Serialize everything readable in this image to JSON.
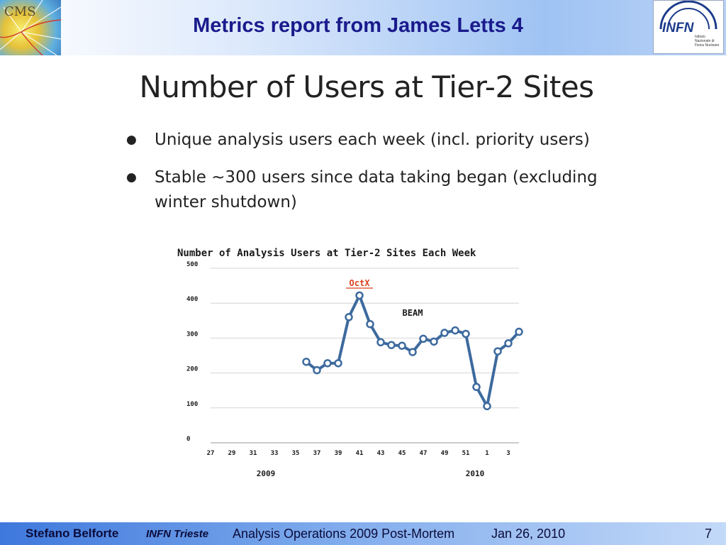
{
  "header": {
    "title": "Metrics report from James Letts 4",
    "left_logo_text": "CMS",
    "right_logo_text": "INFN",
    "right_logo_caption": "Istituto Nazionale di Fisica Nucleare"
  },
  "slide": {
    "title": "Number of Users at Tier-2 Sites",
    "bullets": [
      "Unique analysis users each week (incl. priority users)",
      "Stable ~300 users since data taking began (excluding winter shutdown)"
    ]
  },
  "chart_data": {
    "type": "line",
    "title": "Number of Analysis Users at Tier-2 Sites Each Week",
    "xlabel": "",
    "ylabel": "",
    "ylim": [
      0,
      500
    ],
    "y_ticks": [
      0,
      100,
      200,
      300,
      400,
      500
    ],
    "x_tick_labels": [
      "27",
      "29",
      "31",
      "33",
      "35",
      "37",
      "39",
      "41",
      "43",
      "45",
      "47",
      "49",
      "51",
      "1",
      "3"
    ],
    "year_labels": [
      "2009",
      "2010"
    ],
    "grid": true,
    "series_color": "#3d6a9e",
    "annotations": [
      {
        "text": "OctX",
        "week": "41",
        "color": "#d9421f"
      },
      {
        "text": "BEAM",
        "week": "46",
        "color": "#1a1a1a"
      }
    ],
    "series": [
      {
        "weeks": [
          "36",
          "37",
          "38",
          "39",
          "40",
          "41",
          "42",
          "43",
          "44",
          "45",
          "46",
          "47",
          "48",
          "49",
          "50",
          "51",
          "52",
          "1",
          "2",
          "3",
          "4"
        ],
        "values": [
          232,
          208,
          228,
          228,
          360,
          422,
          340,
          288,
          280,
          278,
          260,
          298,
          290,
          315,
          322,
          312,
          160,
          105,
          262,
          285,
          318
        ]
      }
    ]
  },
  "footer": {
    "author": "Stefano Belforte",
    "affiliation": "INFN Trieste",
    "talk": "Analysis Operations 2009 Post-Mortem",
    "date": "Jan 26, 2010",
    "page": "7"
  }
}
